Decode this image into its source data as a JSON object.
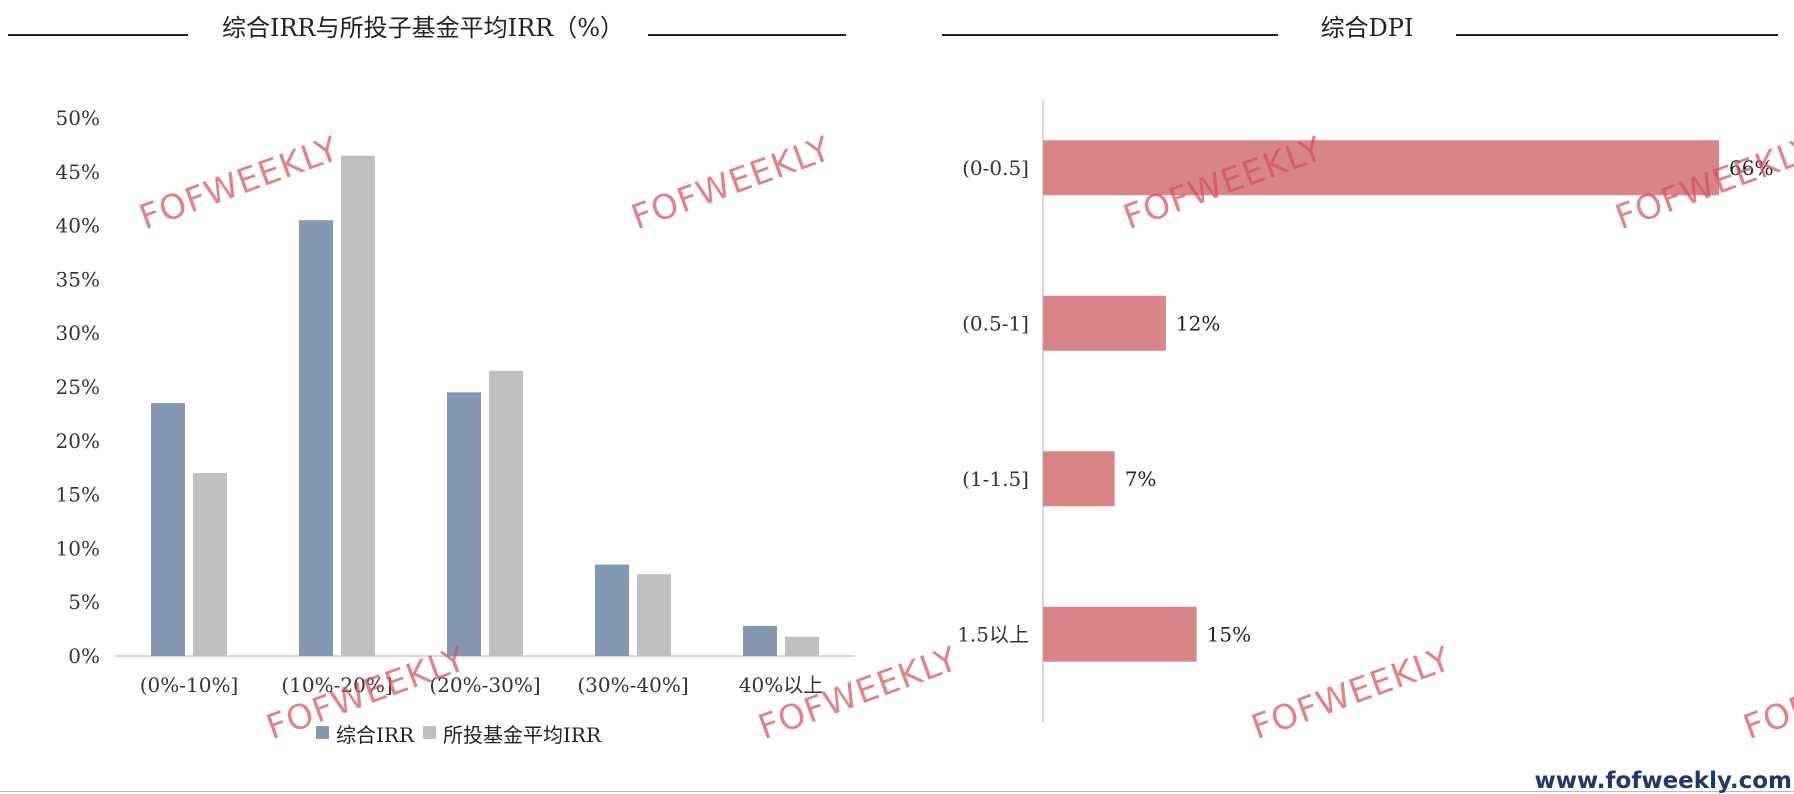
{
  "chart_data": [
    {
      "type": "bar",
      "title": "综合IRR与所投子基金平均IRR（%）",
      "categories": [
        "(0%-10%]",
        "(10%-20%]",
        "(20%-30%]",
        "(30%-40%]",
        "40%以上"
      ],
      "series": [
        {
          "name": "综合IRR",
          "values": [
            23.5,
            40.5,
            24.5,
            8.5,
            2.8
          ],
          "color": "#8497b0"
        },
        {
          "name": "所投基金平均IRR",
          "values": [
            17.0,
            46.5,
            26.5,
            7.6,
            1.8
          ],
          "color": "#bfbfbf"
        }
      ],
      "yticks": [
        "0%",
        "5%",
        "10%",
        "15%",
        "20%",
        "25%",
        "30%",
        "35%",
        "40%",
        "45%",
        "50%"
      ],
      "ylim": [
        0,
        50
      ],
      "legend": "bottom",
      "grid": false
    },
    {
      "type": "bar",
      "orientation": "horizontal",
      "title": "综合DPI",
      "categories": [
        "(0-0.5]",
        "(0.5-1]",
        "(1-1.5]",
        "1.5以上"
      ],
      "values": [
        66,
        12,
        7,
        15
      ],
      "value_labels": [
        "66%",
        "12%",
        "7%",
        "15%"
      ],
      "color": "#d98588",
      "legend": "none",
      "grid": false
    }
  ],
  "watermark": {
    "text": "FOFWEEKLY",
    "color": "#d7505a"
  },
  "footer": {
    "url": "www.fofweekly.com"
  }
}
